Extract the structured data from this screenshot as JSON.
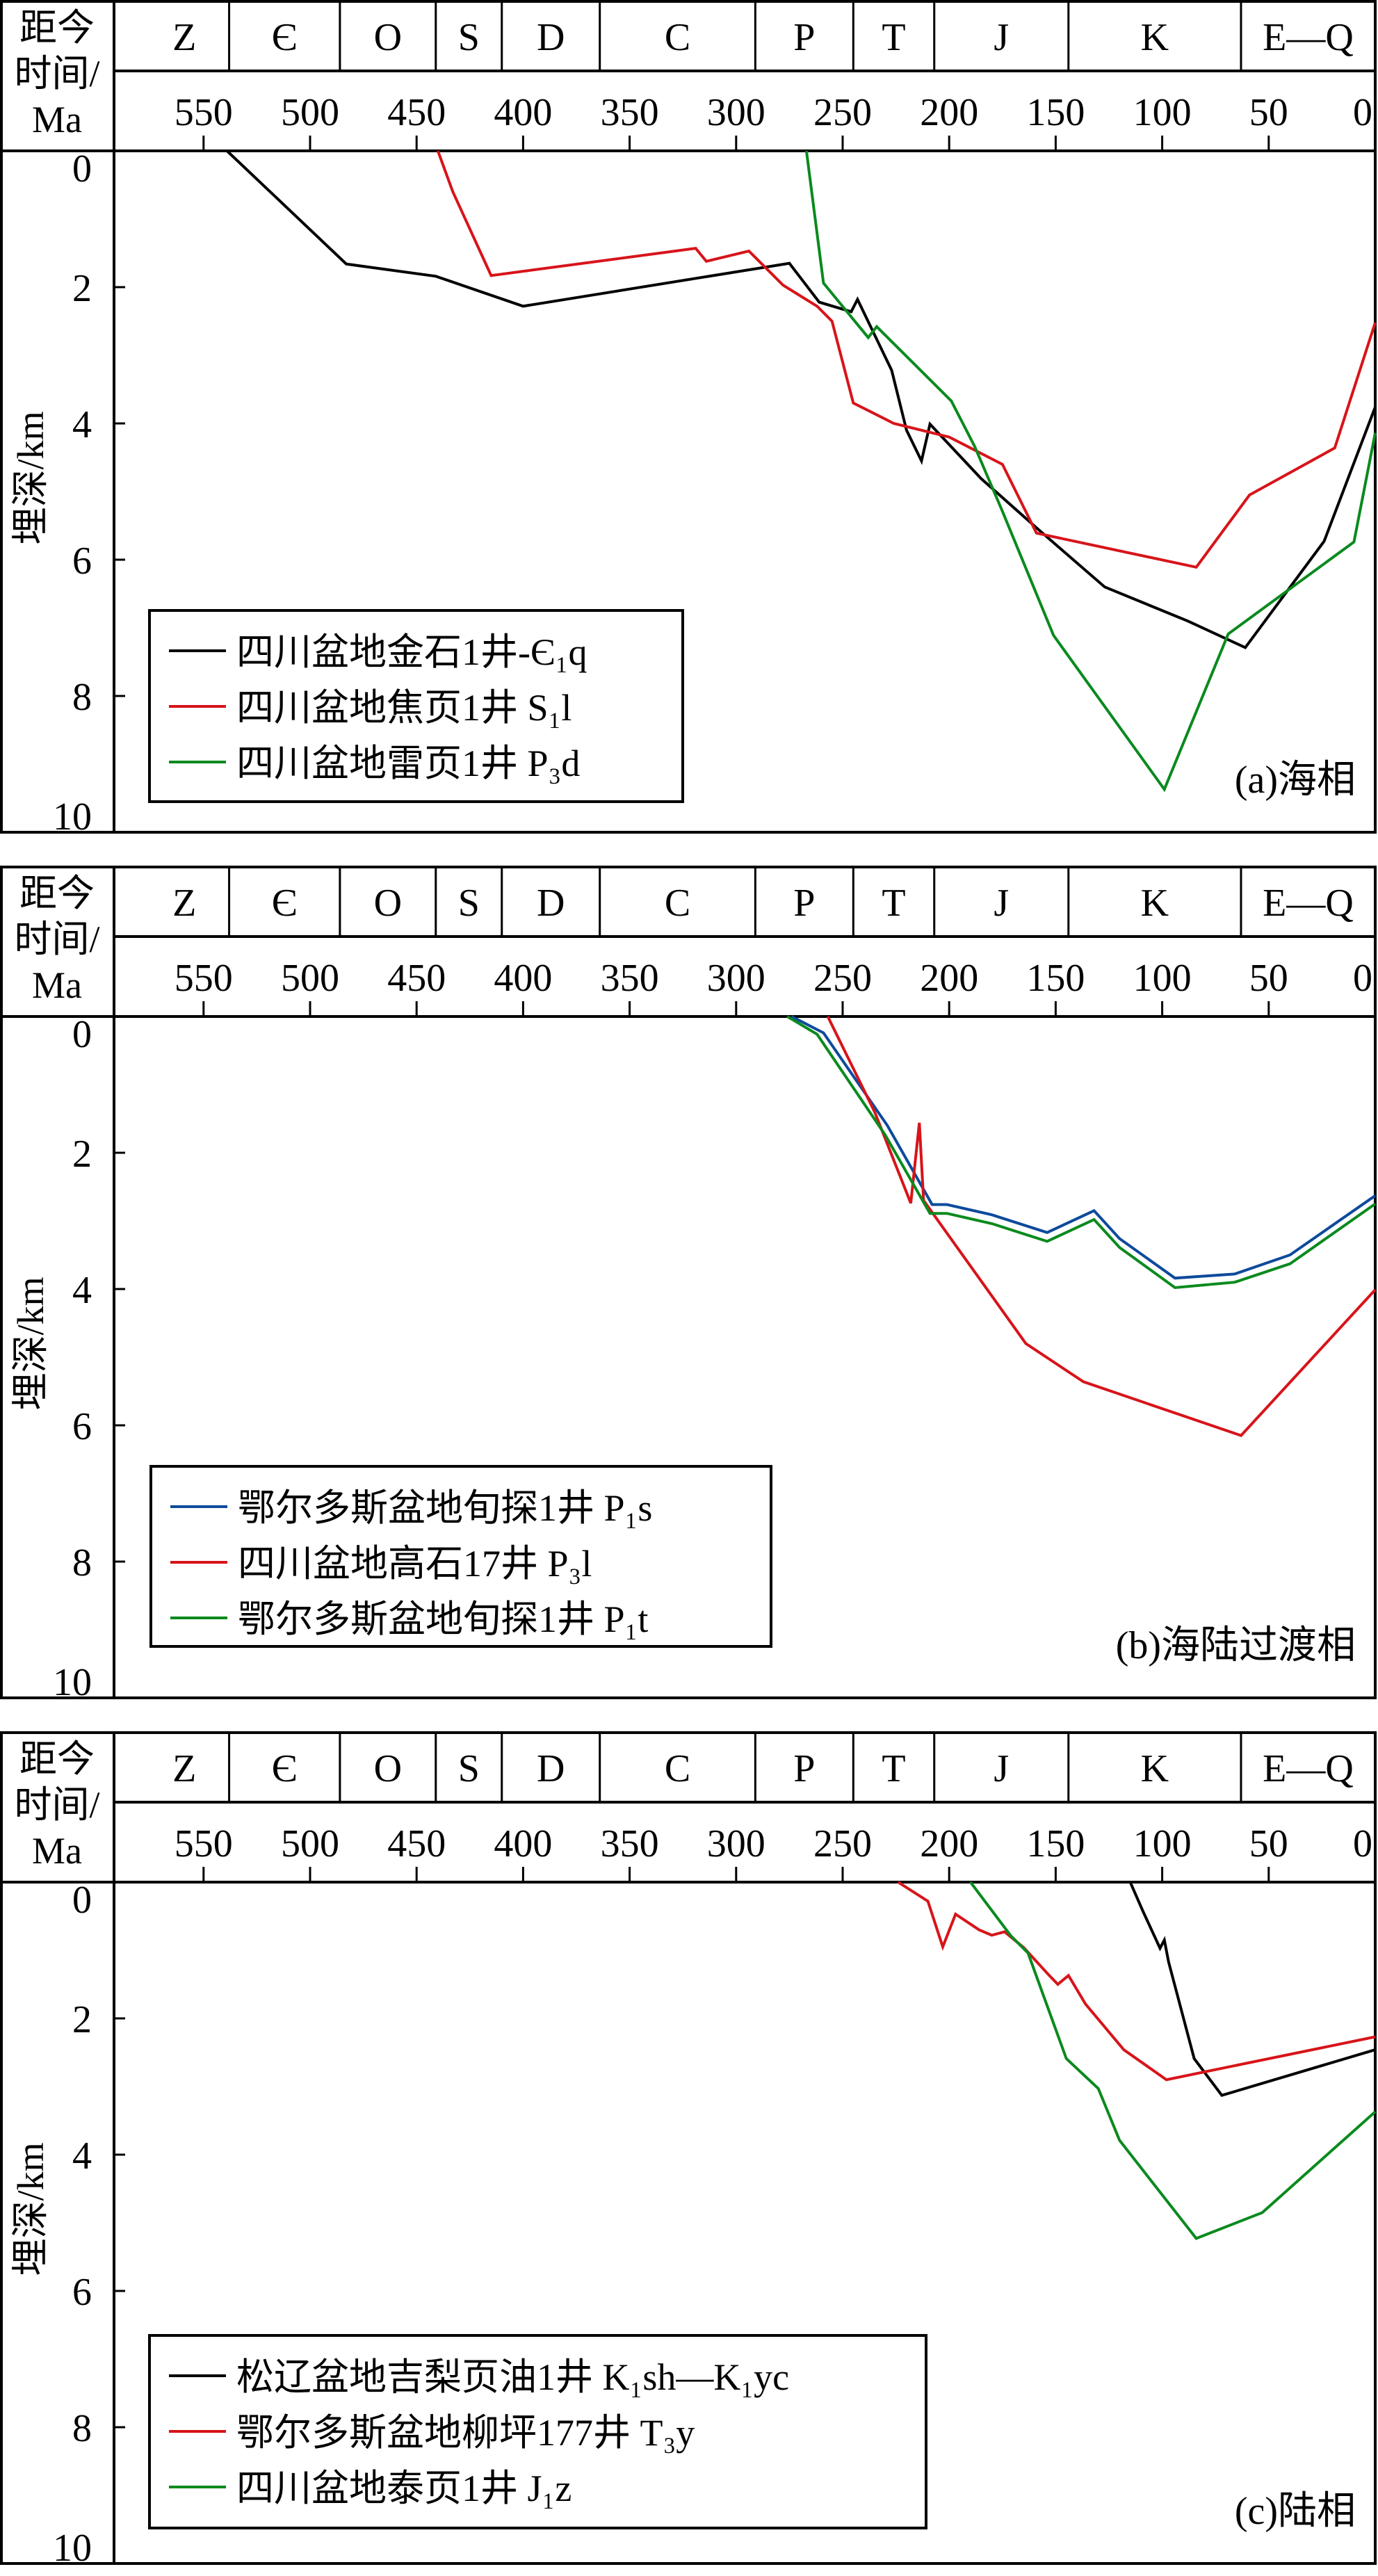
{
  "common": {
    "time_axis_label": [
      "距今",
      "时间/",
      "Ma"
    ],
    "depth_axis_label": "埋深/km",
    "periods": [
      {
        "name": "Z",
        "start": 580,
        "end": 538
      },
      {
        "name": "Є",
        "start": 538,
        "end": 486
      },
      {
        "name": "O",
        "start": 486,
        "end": 441
      },
      {
        "name": "S",
        "start": 441,
        "end": 410
      },
      {
        "name": "D",
        "start": 410,
        "end": 364
      },
      {
        "name": "C",
        "start": 364,
        "end": 291
      },
      {
        "name": "P",
        "start": 291,
        "end": 245
      },
      {
        "name": "T",
        "start": 245,
        "end": 207
      },
      {
        "name": "J",
        "start": 207,
        "end": 144
      },
      {
        "name": "K",
        "start": 144,
        "end": 63
      },
      {
        "name": "E—Q",
        "start": 63,
        "end": 0
      }
    ],
    "colors": {
      "black": "#000000",
      "red": "#d7141a",
      "green": "#0a8a1e",
      "blue": "#0d4a9c"
    }
  },
  "chart_data": [
    {
      "type": "line",
      "title": "(a)海相",
      "xlabel": "距今时间/Ma",
      "ylabel": "埋深/km",
      "xlim": [
        580,
        0
      ],
      "ylim": [
        0,
        10
      ],
      "xticks": [
        550,
        500,
        450,
        400,
        350,
        300,
        250,
        200,
        150,
        100,
        50,
        0
      ],
      "yticks": [
        0,
        2,
        4,
        6,
        8,
        10
      ],
      "legend_position": "bottom-left",
      "series": [
        {
          "name": "四川盆地金石1井-Є₁q",
          "color": "#000000",
          "x": [
            539,
            483,
            441,
            400,
            275,
            261,
            246,
            243,
            227,
            220,
            213,
            209,
            185,
            158,
            127,
            88,
            61,
            24,
            0
          ],
          "y": [
            0,
            1.66,
            1.84,
            2.28,
            1.65,
            2.22,
            2.36,
            2.18,
            3.22,
            4.1,
            4.55,
            4.01,
            4.81,
            5.56,
            6.4,
            6.9,
            7.29,
            5.73,
            3.76
          ]
        },
        {
          "name": "四川盆地焦页1井 S₁l",
          "color": "#d7141a",
          "x": [
            440,
            433,
            415,
            319,
            314,
            294,
            278,
            262,
            255,
            245,
            226,
            200,
            175,
            159,
            84,
            59,
            19,
            0
          ],
          "y": [
            0,
            0.6,
            1.83,
            1.43,
            1.62,
            1.47,
            1.97,
            2.28,
            2.5,
            3.7,
            4.0,
            4.2,
            4.6,
            5.61,
            6.11,
            5.05,
            4.36,
            2.52
          ]
        },
        {
          "name": "四川盆地雷页1井 P₃d",
          "color": "#0a8a1e",
          "x": [
            267,
            259,
            238,
            234,
            199,
            188,
            175,
            151,
            99,
            69,
            10,
            0
          ],
          "y": [
            0,
            1.94,
            2.74,
            2.58,
            3.67,
            4.34,
            5.29,
            7.11,
            9.37,
            7.09,
            5.74,
            4.14
          ]
        }
      ]
    },
    {
      "type": "line",
      "title": "(b)海陆过渡相",
      "xlabel": "距今时间/Ma",
      "ylabel": "埋深/km",
      "xlim": [
        580,
        0
      ],
      "ylim": [
        0,
        10
      ],
      "xticks": [
        550,
        500,
        450,
        400,
        350,
        300,
        250,
        200,
        150,
        100,
        50,
        0
      ],
      "yticks": [
        0,
        2,
        4,
        6,
        8,
        10
      ],
      "legend_position": "bottom-left",
      "series": [
        {
          "name": "鄂尔多斯盆地旬探1井 P₁s",
          "color": "#0d4a9c",
          "x": [
            274,
            259,
            229,
            208,
            201,
            180,
            154,
            132,
            120,
            94,
            66,
            40,
            0
          ],
          "y": [
            0,
            0.24,
            1.6,
            2.76,
            2.76,
            2.91,
            3.17,
            2.85,
            3.26,
            3.84,
            3.78,
            3.5,
            2.63
          ]
        },
        {
          "name": "四川盆地高石17井 P₃l",
          "color": "#d7141a",
          "x": [
            257,
            235,
            218,
            214,
            212,
            164,
            137,
            63,
            0
          ],
          "y": [
            0,
            1.4,
            2.74,
            1.56,
            2.7,
            4.8,
            5.36,
            6.15,
            4.01
          ]
        },
        {
          "name": "鄂尔多斯盆地旬探1井 P₁t",
          "color": "#0a8a1e",
          "x": [
            276,
            262,
            230,
            209,
            201,
            180,
            154,
            132,
            120,
            94,
            66,
            40,
            0
          ],
          "y": [
            0,
            0.26,
            1.74,
            2.89,
            2.89,
            3.04,
            3.3,
            2.98,
            3.39,
            3.98,
            3.9,
            3.63,
            2.75
          ]
        }
      ]
    },
    {
      "type": "line",
      "title": "(c)陆相",
      "xlabel": "距今时间/Ma",
      "ylabel": "埋深/km",
      "xlim": [
        580,
        0
      ],
      "ylim": [
        0,
        10
      ],
      "xticks": [
        550,
        500,
        450,
        400,
        350,
        300,
        250,
        200,
        150,
        100,
        50,
        0
      ],
      "yticks": [
        0,
        2,
        4,
        6,
        8,
        10
      ],
      "legend_position": "bottom-left",
      "series": [
        {
          "name": "松辽盆地吉梨页油1井 K₁sh—K₁yc",
          "color": "#000000",
          "x": [
            115,
            109,
            101,
            99,
            97,
            85,
            72,
            0
          ],
          "y": [
            0,
            0.43,
            0.97,
            0.85,
            1.17,
            2.59,
            3.13,
            2.46
          ]
        },
        {
          "name": "鄂尔多斯盆地柳坪177井 T₃y",
          "color": "#d7141a",
          "x": [
            224,
            210,
            203,
            197,
            186,
            180,
            174,
            165,
            153,
            149,
            144,
            136,
            118,
            98,
            0
          ],
          "y": [
            0,
            0.28,
            0.95,
            0.47,
            0.7,
            0.78,
            0.73,
            0.96,
            1.37,
            1.5,
            1.37,
            1.79,
            2.46,
            2.9,
            2.27
          ]
        },
        {
          "name": "四川盆地泰页1井 J₁z",
          "color": "#0a8a1e",
          "x": [
            190,
            171,
            163,
            145,
            130,
            120,
            84,
            53,
            0
          ],
          "y": [
            0,
            0.79,
            1.04,
            2.59,
            3.03,
            3.79,
            5.23,
            4.85,
            3.37
          ]
        }
      ]
    }
  ]
}
